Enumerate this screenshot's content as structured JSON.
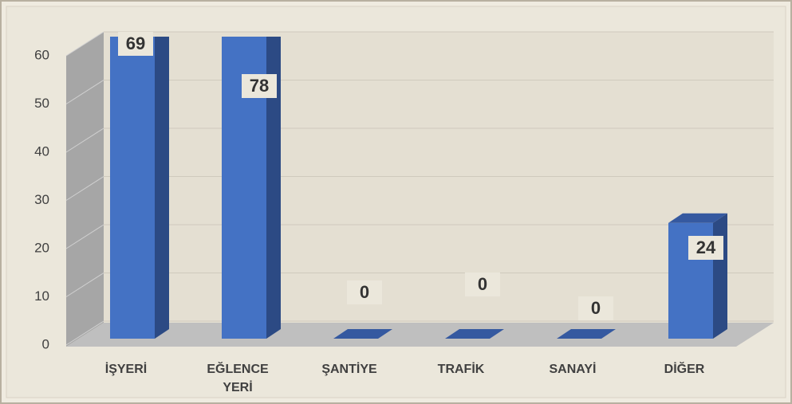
{
  "chart_data": {
    "type": "bar3d",
    "categories": [
      "İŞYERİ",
      "EĞLENCE YERİ",
      "ŞANTİYE",
      "TRAFİK",
      "SANAYİ",
      "DİĞER"
    ],
    "values": [
      69,
      78,
      0,
      0,
      0,
      24
    ],
    "color": "#4472c4",
    "ylim": [
      0,
      60
    ],
    "yticks": [
      0,
      10,
      20,
      30,
      40,
      50,
      60
    ],
    "grid": true
  }
}
